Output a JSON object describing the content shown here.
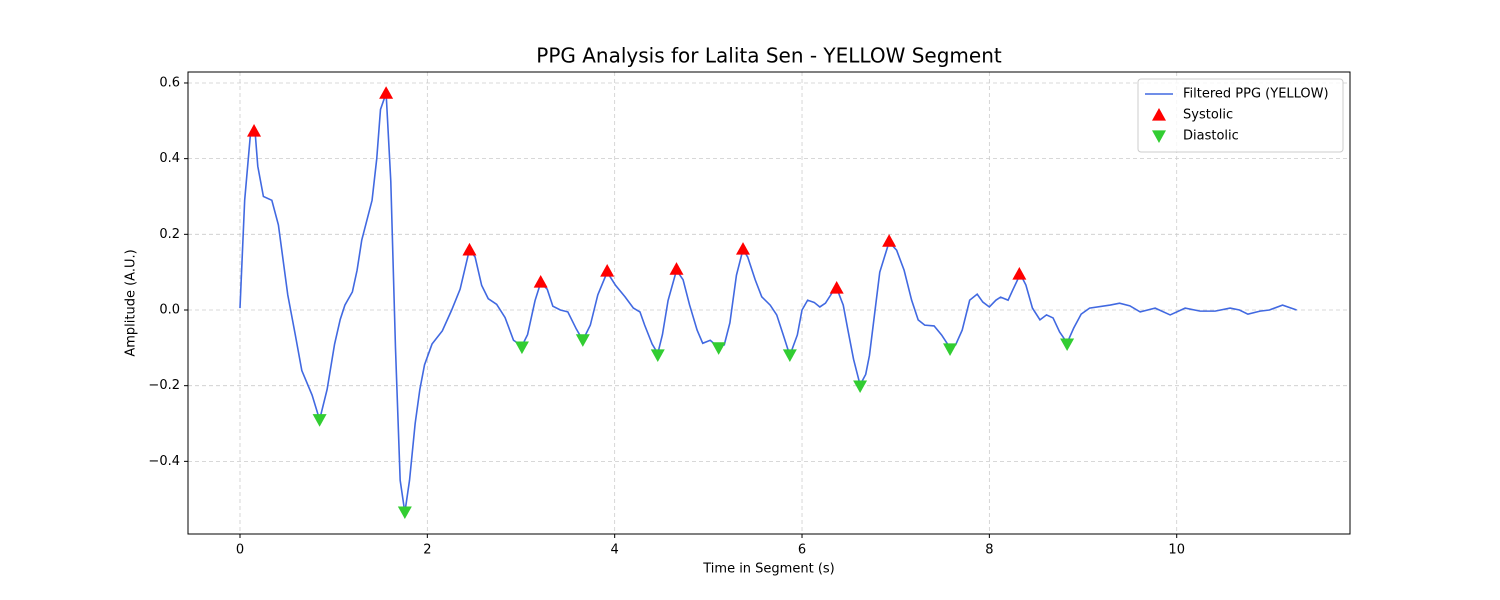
{
  "chart_data": {
    "type": "line",
    "title": "PPG Analysis for Lalita Sen - YELLOW Segment",
    "xlabel": "Time in Segment (s)",
    "ylabel": "Amplitude (A.U.)",
    "xlim": [
      -0.555,
      11.85
    ],
    "ylim": [
      -0.592,
      0.629
    ],
    "xticks": [
      0,
      2,
      4,
      6,
      8,
      10
    ],
    "yticks": [
      {
        "value": -0.4,
        "label": "−0.4"
      },
      {
        "value": -0.2,
        "label": "−0.2"
      },
      {
        "value": 0,
        "label": "0.0"
      },
      0.2,
      0.4,
      0.6
    ],
    "grid": true,
    "legend": "upper right",
    "series": [
      {
        "name": "Filtered PPG (YELLOW)",
        "color": "#4169e1",
        "marker": "none",
        "x": [
          0,
          0.05,
          0.11,
          0.16,
          0.19,
          0.25,
          0.34,
          0.41,
          0.51,
          0.59,
          0.66,
          0.77,
          0.85,
          0.93,
          1.01,
          1.07,
          1.12,
          1.2,
          1.25,
          1.3,
          1.41,
          1.46,
          1.5,
          1.56,
          1.61,
          1.66,
          1.71,
          1.76,
          1.81,
          1.87,
          1.92,
          1.97,
          2.05,
          2.16,
          2.26,
          2.35,
          2.45,
          2.51,
          2.58,
          2.65,
          2.74,
          2.83,
          2.92,
          3.01,
          3.07,
          3.15,
          3.21,
          3.28,
          3.34,
          3.42,
          3.5,
          3.59,
          3.66,
          3.74,
          3.82,
          3.92,
          4.01,
          4.11,
          4.2,
          4.27,
          4.32,
          4.4,
          4.46,
          4.51,
          4.57,
          4.66,
          4.73,
          4.8,
          4.88,
          4.94,
          5.02,
          5.1,
          5.17,
          5.23,
          5.3,
          5.37,
          5.42,
          5.5,
          5.57,
          5.66,
          5.73,
          5.8,
          5.87,
          5.95,
          6.0,
          6.06,
          6.13,
          6.19,
          6.25,
          6.32,
          6.37,
          6.44,
          6.49,
          6.55,
          6.62,
          6.68,
          6.72,
          6.78,
          6.83,
          6.93,
          7.01,
          7.09,
          7.17,
          7.24,
          7.31,
          7.41,
          7.49,
          7.58,
          7.64,
          7.71,
          7.79,
          7.87,
          7.93,
          8.0,
          8.07,
          8.12,
          8.2,
          8.25,
          8.33,
          8.39,
          8.46,
          8.54,
          8.61,
          8.68,
          8.75,
          8.83,
          8.9,
          8.98,
          9.07,
          9.29,
          9.39,
          9.5,
          9.61,
          9.77,
          9.93,
          10.09,
          10.25,
          10.41,
          10.57,
          10.67,
          10.76,
          10.89,
          10.99,
          11.13,
          11.28
        ],
        "values": [
          0.005,
          0.29,
          0.46,
          0.475,
          0.38,
          0.3,
          0.29,
          0.225,
          0.04,
          -0.065,
          -0.16,
          -0.225,
          -0.29,
          -0.21,
          -0.09,
          -0.025,
          0.013,
          0.048,
          0.105,
          0.185,
          0.29,
          0.4,
          0.53,
          0.573,
          0.34,
          -0.1,
          -0.45,
          -0.535,
          -0.45,
          -0.3,
          -0.21,
          -0.145,
          -0.09,
          -0.055,
          0.0,
          0.055,
          0.16,
          0.14,
          0.065,
          0.03,
          0.015,
          -0.02,
          -0.08,
          -0.095,
          -0.065,
          0.025,
          0.072,
          0.055,
          0.01,
          0.0,
          -0.005,
          -0.05,
          -0.08,
          -0.04,
          0.04,
          0.1,
          0.065,
          0.035,
          0.005,
          -0.005,
          -0.04,
          -0.09,
          -0.115,
          -0.065,
          0.025,
          0.105,
          0.08,
          0.013,
          -0.053,
          -0.088,
          -0.08,
          -0.097,
          -0.092,
          -0.034,
          0.092,
          0.16,
          0.14,
          0.08,
          0.035,
          0.013,
          -0.013,
          -0.066,
          -0.12,
          -0.066,
          0.0,
          0.026,
          0.02,
          0.008,
          0.018,
          0.045,
          0.058,
          0.013,
          -0.053,
          -0.13,
          -0.198,
          -0.17,
          -0.12,
          0.0,
          0.1,
          0.18,
          0.158,
          0.105,
          0.026,
          -0.026,
          -0.04,
          -0.042,
          -0.066,
          -0.1,
          -0.092,
          -0.053,
          0.026,
          0.042,
          0.021,
          0.008,
          0.026,
          0.034,
          0.026,
          0.053,
          0.095,
          0.066,
          0.005,
          -0.026,
          -0.013,
          -0.021,
          -0.058,
          -0.087,
          -0.048,
          -0.011,
          0.005,
          0.013,
          0.018,
          0.011,
          -0.005,
          0.005,
          -0.013,
          0.005,
          -0.003,
          -0.003,
          0.005,
          0.0,
          -0.011,
          -0.003,
          0.0,
          0.013,
          0.0
        ]
      },
      {
        "name": "Systolic",
        "color": "#ff0000",
        "marker": "^",
        "x": [
          0.15,
          1.56,
          2.45,
          3.21,
          3.92,
          4.66,
          5.37,
          6.37,
          6.93,
          8.32
        ],
        "values": [
          0.473,
          0.573,
          0.159,
          0.074,
          0.103,
          0.108,
          0.161,
          0.058,
          0.182,
          0.095
        ]
      },
      {
        "name": "Diastolic",
        "color": "#32cd32",
        "marker": "v",
        "x": [
          0.85,
          1.76,
          3.01,
          3.66,
          4.46,
          5.11,
          5.87,
          6.62,
          7.58,
          8.83
        ],
        "values": [
          -0.29,
          -0.534,
          -0.098,
          -0.079,
          -0.119,
          -0.1,
          -0.119,
          -0.201,
          -0.103,
          -0.09
        ]
      }
    ]
  }
}
